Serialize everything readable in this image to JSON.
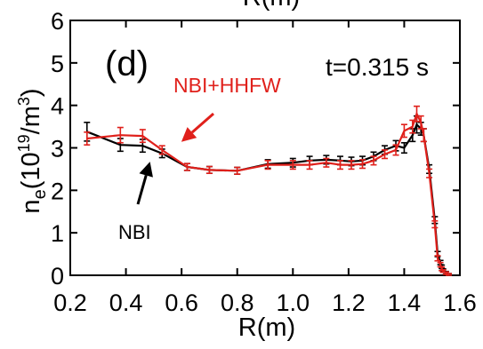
{
  "top_clipped_label": "R(m)",
  "chart_data": {
    "type": "line",
    "panel_label": "(d)",
    "time_label": "t=0.315 s",
    "xlabel": "R(m)",
    "ylabel": {
      "main": "n",
      "sub": "e",
      "mid": "(10",
      "sup1": "19",
      "mid2": "/m",
      "sup2": "3",
      "end": ")"
    },
    "xlim": [
      0.2,
      1.6
    ],
    "ylim": [
      0,
      6
    ],
    "xticks": [
      "0.2",
      "0.4",
      "0.6",
      "0.8",
      "1.0",
      "1.2",
      "1.4",
      "1.6"
    ],
    "yticks": [
      "0",
      "1",
      "2",
      "3",
      "4",
      "5",
      "6"
    ],
    "grid": false,
    "series": [
      {
        "name": "NBI",
        "color": "#000000",
        "x": [
          0.26,
          0.38,
          0.46,
          0.53,
          0.62,
          0.7,
          0.8,
          0.91,
          1.0,
          1.06,
          1.12,
          1.17,
          1.21,
          1.25,
          1.29,
          1.33,
          1.37,
          1.4,
          1.43,
          1.445,
          1.46,
          1.47,
          1.49,
          1.51,
          1.52,
          1.53,
          1.535,
          1.54,
          1.55,
          1.56
        ],
        "y": [
          3.38,
          3.07,
          3.05,
          2.87,
          2.55,
          2.48,
          2.46,
          2.62,
          2.65,
          2.7,
          2.72,
          2.7,
          2.68,
          2.7,
          2.8,
          2.95,
          3.05,
          3.0,
          3.3,
          3.55,
          3.45,
          3.3,
          2.5,
          1.3,
          0.5,
          0.3,
          0.2,
          0.12,
          0.06,
          0.02
        ],
        "errors": [
          0.22,
          0.15,
          0.15,
          0.1,
          0.08,
          0.08,
          0.08,
          0.1,
          0.1,
          0.1,
          0.1,
          0.1,
          0.1,
          0.1,
          0.1,
          0.1,
          0.12,
          0.12,
          0.15,
          0.2,
          0.15,
          0.15,
          0.1,
          0.08,
          0.06,
          0.05,
          0.04,
          0.03,
          0.03,
          0.02
        ]
      },
      {
        "name": "NBI+HHFW",
        "color": "#e0201b",
        "x": [
          0.26,
          0.38,
          0.46,
          0.53,
          0.62,
          0.7,
          0.8,
          0.91,
          1.0,
          1.06,
          1.12,
          1.17,
          1.21,
          1.25,
          1.29,
          1.33,
          1.37,
          1.4,
          1.43,
          1.445,
          1.46,
          1.47,
          1.49,
          1.51,
          1.52,
          1.53,
          1.535,
          1.54,
          1.55,
          1.56
        ],
        "y": [
          3.22,
          3.3,
          3.28,
          2.95,
          2.55,
          2.48,
          2.46,
          2.6,
          2.6,
          2.6,
          2.65,
          2.6,
          2.6,
          2.62,
          2.7,
          2.85,
          2.95,
          3.4,
          3.5,
          3.8,
          3.6,
          3.3,
          2.4,
          1.2,
          0.4,
          0.25,
          0.15,
          0.1,
          0.05,
          0.02
        ],
        "errors": [
          0.15,
          0.18,
          0.15,
          0.1,
          0.08,
          0.08,
          0.08,
          0.1,
          0.1,
          0.1,
          0.1,
          0.1,
          0.1,
          0.1,
          0.1,
          0.1,
          0.12,
          0.15,
          0.15,
          0.18,
          0.15,
          0.15,
          0.1,
          0.08,
          0.06,
          0.05,
          0.04,
          0.03,
          0.03,
          0.02
        ]
      }
    ],
    "annotations": [
      {
        "text": "NBI+HHFW",
        "color": "#e0201b",
        "arrow_to": [
          0.58,
          3.1
        ]
      },
      {
        "text": "NBI",
        "color": "#000000",
        "arrow_to": [
          0.48,
          2.8
        ]
      }
    ]
  }
}
